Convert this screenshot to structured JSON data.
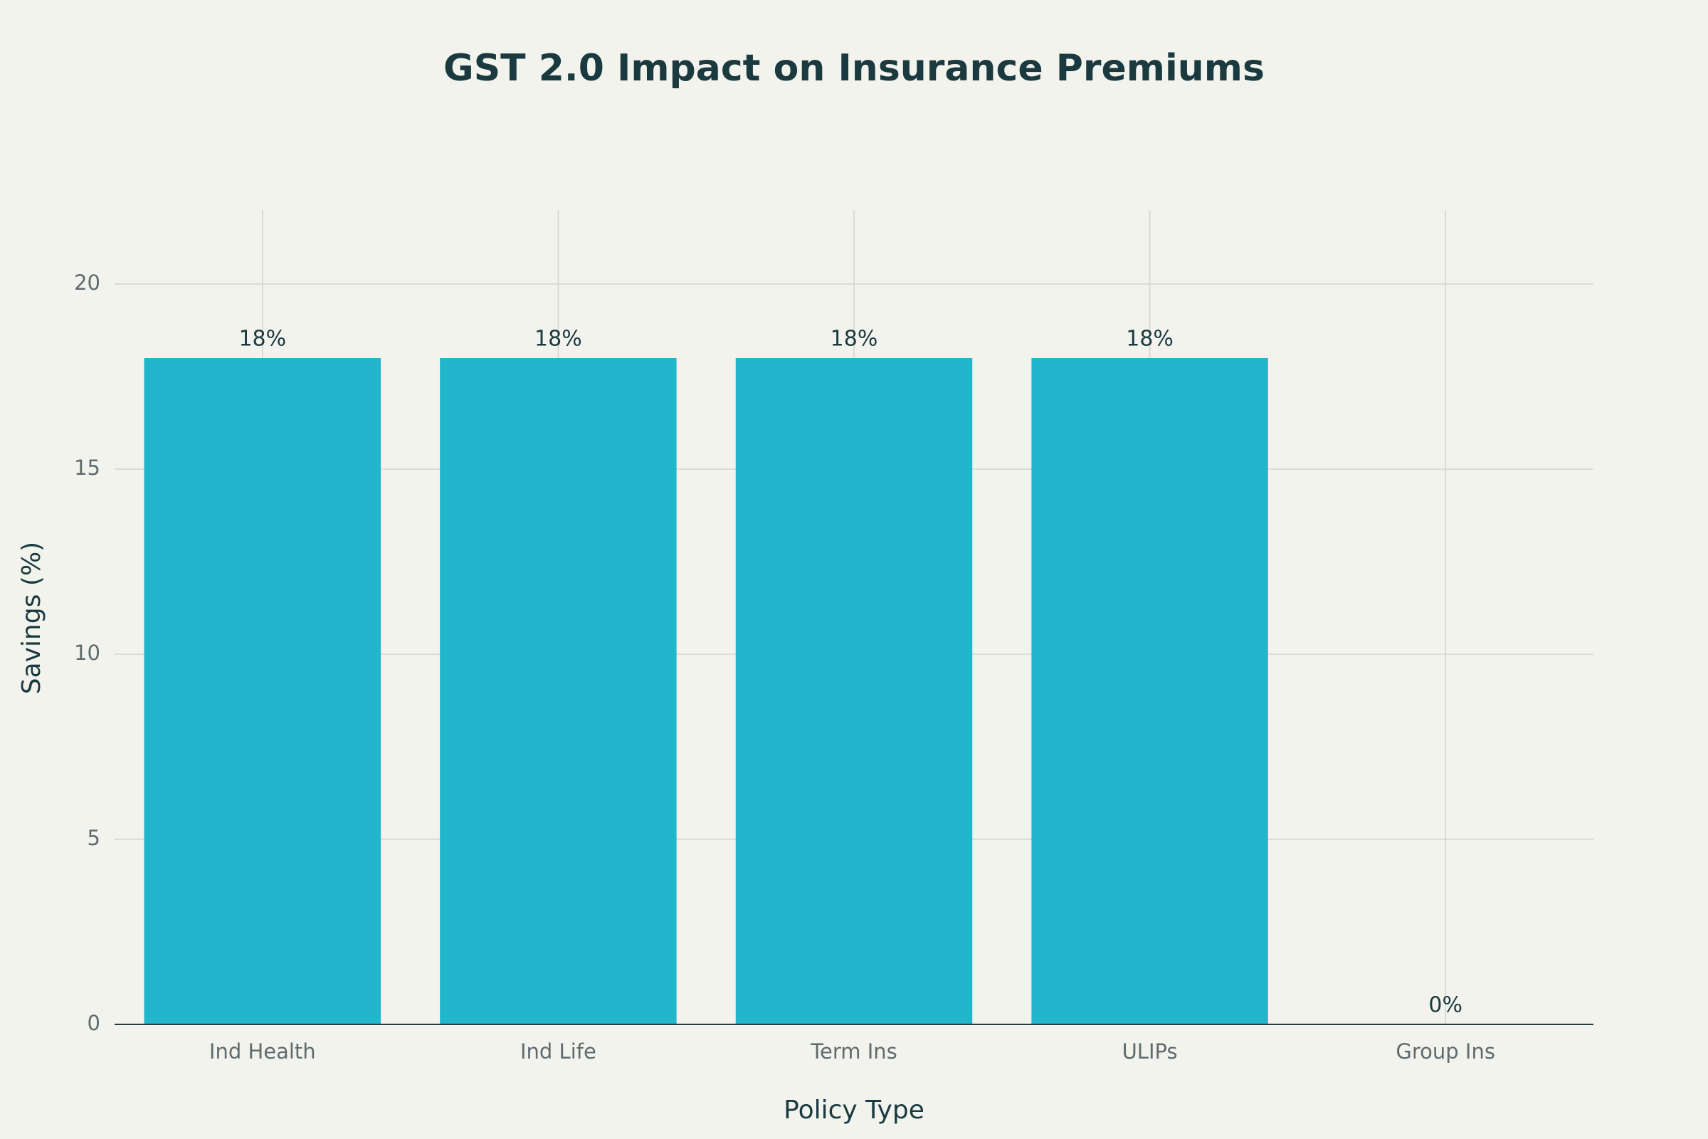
{
  "chart_data": {
    "type": "bar",
    "title": "GST 2.0 Impact on Insurance Premiums",
    "x_label": "Policy Type",
    "y_label": "Savings (%)",
    "categories": [
      "Ind Health",
      "Ind Life",
      "Term Ins",
      "ULIPs",
      "Group Ins"
    ],
    "values": [
      18,
      18,
      18,
      18,
      0
    ],
    "value_labels": [
      "18%",
      "18%",
      "18%",
      "18%",
      "0%"
    ],
    "color": "#21b6cc",
    "ylim": [
      0,
      22
    ],
    "yticks": [
      0,
      5,
      10,
      15,
      20
    ],
    "grid": true
  }
}
